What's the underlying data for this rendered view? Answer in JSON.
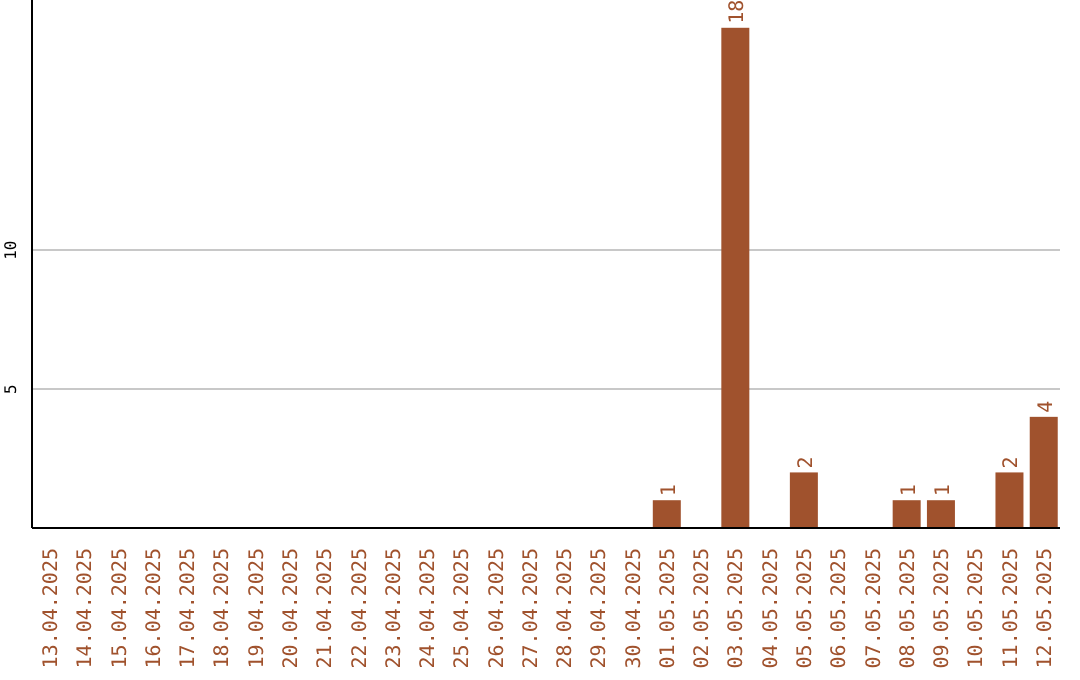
{
  "chart_data": {
    "type": "bar",
    "categories": [
      "13.04.2025",
      "14.04.2025",
      "15.04.2025",
      "16.04.2025",
      "17.04.2025",
      "18.04.2025",
      "19.04.2025",
      "20.04.2025",
      "21.04.2025",
      "22.04.2025",
      "23.04.2025",
      "24.04.2025",
      "25.04.2025",
      "26.04.2025",
      "27.04.2025",
      "28.04.2025",
      "29.04.2025",
      "30.04.2025",
      "01.05.2025",
      "02.05.2025",
      "03.05.2025",
      "04.05.2025",
      "05.05.2025",
      "06.05.2025",
      "07.05.2025",
      "08.05.2025",
      "09.05.2025",
      "10.05.2025",
      "11.05.2025",
      "12.05.2025"
    ],
    "values": [
      0,
      0,
      0,
      0,
      0,
      0,
      0,
      0,
      0,
      0,
      0,
      0,
      0,
      0,
      0,
      0,
      0,
      0,
      1,
      0,
      18,
      0,
      2,
      0,
      0,
      1,
      1,
      0,
      2,
      4
    ],
    "value_labels": [
      null,
      null,
      null,
      null,
      null,
      null,
      null,
      null,
      null,
      null,
      null,
      null,
      null,
      null,
      null,
      null,
      null,
      null,
      "1",
      null,
      "18",
      null,
      "2",
      null,
      null,
      "1",
      "1",
      null,
      "2",
      "4"
    ],
    "color": "#a0522d",
    "ylim": [
      0,
      19
    ],
    "yticks": [
      5,
      10
    ],
    "grid": "y",
    "legend": false
  }
}
